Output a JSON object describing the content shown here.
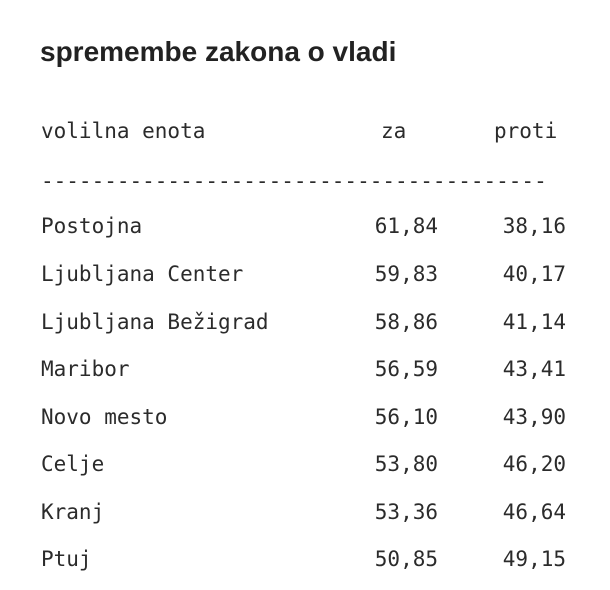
{
  "title": "spremembe zakona o vladi",
  "table": {
    "headers": {
      "unit": "volilna enota",
      "za": "za",
      "proti": "proti"
    },
    "divider": "----------------------------------------",
    "rows": [
      {
        "unit": "Postojna",
        "za": "61,84",
        "proti": "38,16"
      },
      {
        "unit": "Ljubljana Center",
        "za": "59,83",
        "proti": "40,17"
      },
      {
        "unit": "Ljubljana Bežigrad",
        "za": "58,86",
        "proti": "41,14"
      },
      {
        "unit": "Maribor",
        "za": "56,59",
        "proti": "43,41"
      },
      {
        "unit": "Novo mesto",
        "za": "56,10",
        "proti": "43,90"
      },
      {
        "unit": "Celje",
        "za": "53,80",
        "proti": "46,20"
      },
      {
        "unit": "Kranj",
        "za": "53,36",
        "proti": "46,64"
      },
      {
        "unit": "Ptuj",
        "za": "50,85",
        "proti": "49,15"
      }
    ]
  }
}
